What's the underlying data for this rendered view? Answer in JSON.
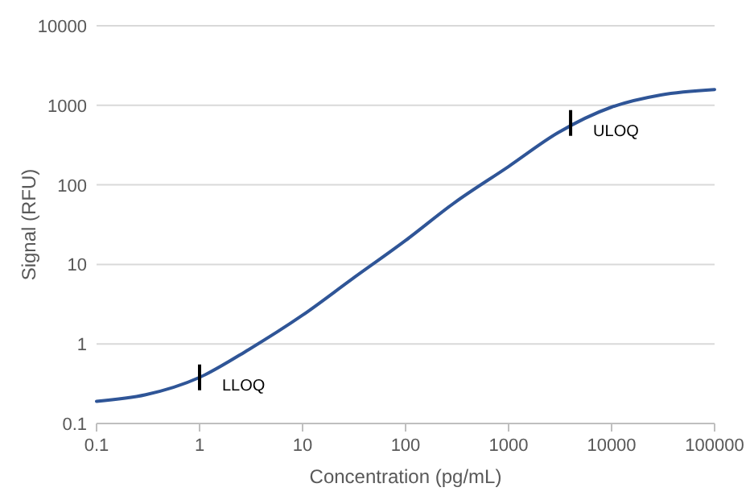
{
  "chart_data": {
    "type": "line",
    "xlabel": "Concentration (pg/mL)",
    "ylabel": "Signal (RFU)",
    "log": "xy",
    "grid": "y",
    "x": [
      0.1,
      0.3,
      1,
      3,
      10,
      30,
      100,
      300,
      1000,
      3000,
      10000,
      30000,
      100000
    ],
    "series": [
      {
        "color": "#2f5597",
        "values": [
          0.19,
          0.23,
          0.38,
          0.85,
          2.3,
          6.5,
          20,
          60,
          170,
          450,
          950,
          1350,
          1580
        ]
      }
    ],
    "xlim": [
      0.1,
      100000
    ],
    "xticks": [
      0.1,
      1,
      10,
      100,
      1000,
      10000,
      100000
    ],
    "ylim": [
      0.1,
      10000
    ],
    "yticks": [
      0.1,
      1,
      10,
      100,
      1000,
      10000
    ],
    "annotations": [
      {
        "text": "LLOQ",
        "x": 1,
        "y": 0.38
      },
      {
        "text": "ULOQ",
        "x": 4000,
        "y": 600
      }
    ]
  }
}
